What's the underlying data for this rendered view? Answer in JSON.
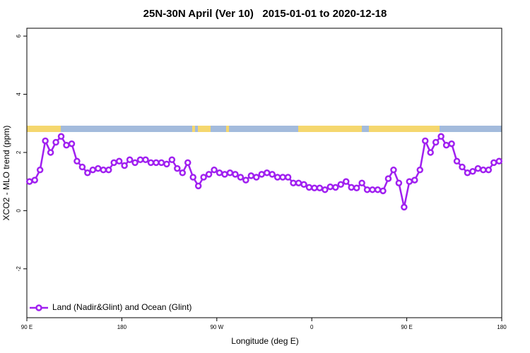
{
  "chart_data": {
    "type": "line",
    "title": "25N-30N April (Ver 10)   2015-01-01 to 2020-12-18",
    "xlabel": "Longitude (deg E)",
    "ylabel": "XCO2 - MLO trend (ppm)",
    "x": [
      92.5,
      97.5,
      102.5,
      107.5,
      112.5,
      117.5,
      122.5,
      127.5,
      132.5,
      137.5,
      142.5,
      147.5,
      152.5,
      157.5,
      162.5,
      167.5,
      172.5,
      177.5,
      182.5,
      187.5,
      192.5,
      197.5,
      202.5,
      207.5,
      212.5,
      217.5,
      222.5,
      227.5,
      232.5,
      237.5,
      242.5,
      247.5,
      252.5,
      257.5,
      262.5,
      267.5,
      272.5,
      277.5,
      282.5,
      287.5,
      292.5,
      297.5,
      302.5,
      307.5,
      312.5,
      317.5,
      322.5,
      327.5,
      332.5,
      337.5,
      342.5,
      347.5,
      352.5,
      357.5,
      362.5,
      367.5,
      372.5,
      377.5,
      382.5,
      387.5,
      392.5,
      397.5,
      402.5,
      407.5,
      412.5,
      417.5,
      422.5,
      427.5,
      432.5,
      437.5,
      442.5,
      447.5,
      452.5,
      457.5,
      462.5,
      467.5,
      472.5,
      477.5,
      482.5,
      487.5,
      492.5,
      497.5,
      502.5,
      507.5,
      512.5,
      517.5,
      522.5,
      527.5,
      532.5,
      537.5
    ],
    "series": [
      {
        "name": "Land (Nadir&Glint) and Ocean (Glint)",
        "color": "#a020f0",
        "values": [
          1.0,
          1.05,
          1.4,
          2.4,
          2.0,
          2.35,
          2.55,
          2.25,
          2.3,
          1.7,
          1.5,
          1.3,
          1.4,
          1.45,
          1.4,
          1.4,
          1.65,
          1.7,
          1.55,
          1.75,
          1.65,
          1.75,
          1.75,
          1.65,
          1.65,
          1.65,
          1.6,
          1.75,
          1.45,
          1.3,
          1.65,
          1.15,
          0.85,
          1.15,
          1.25,
          1.4,
          1.3,
          1.25,
          1.3,
          1.25,
          1.15,
          1.05,
          1.2,
          1.15,
          1.25,
          1.3,
          1.25,
          1.15,
          1.15,
          1.15,
          0.95,
          0.95,
          0.9,
          0.8,
          0.78,
          0.78,
          0.72,
          0.82,
          0.8,
          0.9,
          1.0,
          0.8,
          0.78,
          0.95,
          0.72,
          0.72,
          0.72,
          0.68,
          1.1,
          1.4,
          0.95,
          0.12,
          1.0,
          1.05,
          1.4,
          2.4,
          2.0,
          2.35,
          2.55,
          2.25,
          2.3,
          1.7,
          1.5,
          1.3,
          1.35,
          1.45,
          1.4,
          1.4,
          1.65,
          1.7
        ]
      }
    ],
    "xlim": [
      90,
      540
    ],
    "xticks": [
      {
        "value": 90,
        "label": "90 E"
      },
      180,
      {
        "value": 270,
        "label": "90 W"
      },
      {
        "value": 360,
        "label": "0"
      },
      {
        "value": 450,
        "label": "90 E"
      },
      {
        "value": 540,
        "label": "180"
      }
    ],
    "ylim": [
      -3.68,
      6.27
    ],
    "yticks": [
      -2,
      0,
      2,
      4,
      6
    ],
    "legend": "bottom-left"
  }
}
